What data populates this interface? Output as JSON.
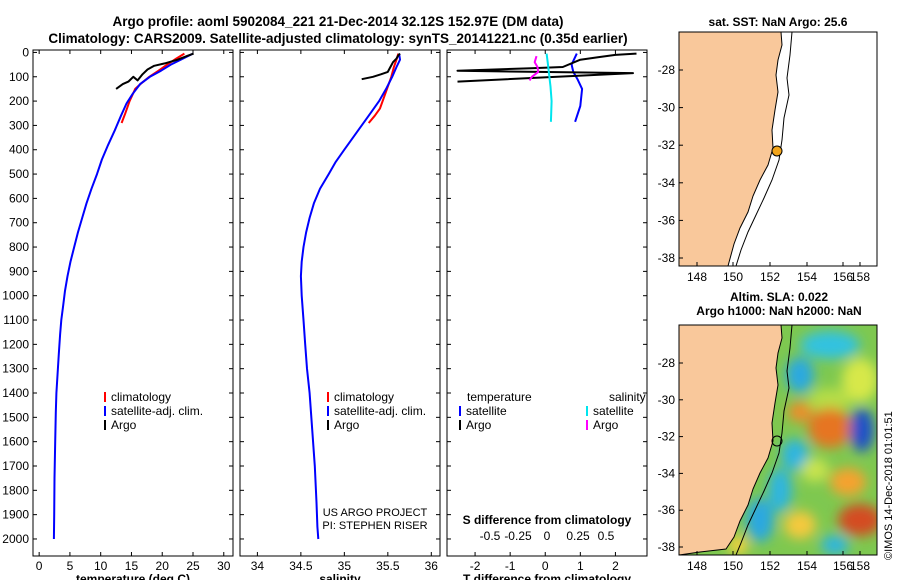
{
  "title": {
    "line1": "Argo profile: aoml 5902084_221 21-Dec-2014 32.12S 152.97E (DM data)",
    "line2": "Climatology: CARS2009. Satellite-adjusted climatology: synTS_20141221.nc (0.35d earlier)"
  },
  "credits": {
    "line1": "US ARGO PROJECT",
    "line2": "PI: STEPHEN RISER"
  },
  "watermark": "©IMOS 14-Dec-2018 01:01:51",
  "sst_map": {
    "title": "sat. SST: NaN Argo: 25.6"
  },
  "sla_map": {
    "title1": "Altim. SLA: 0.022",
    "title2": "Argo h1000: NaN h2000: NaN"
  },
  "map_axes": {
    "x_ticks": [
      "148",
      "150",
      "152",
      "154",
      "156",
      "158"
    ],
    "y_ticks": [
      "-28",
      "-30",
      "-32",
      "-34",
      "-36",
      "-38"
    ]
  },
  "colors": {
    "climatology": "#ff0000",
    "satellite": "#0000ff",
    "argo": "#000000",
    "sal_satellite": "#00e5ee",
    "sal_argo": "#ff00ff",
    "land": "#f9c89b"
  },
  "chart_data": [
    {
      "type": "line",
      "name": "temperature",
      "xlabel": "temperature (deg C)",
      "ylabel": "",
      "xlim": [
        -1,
        31.5
      ],
      "ylim": [
        2070,
        -10
      ],
      "x_ticks": [
        0,
        5,
        10,
        15,
        20,
        25,
        30
      ],
      "y_ticks": [
        0,
        100,
        200,
        300,
        400,
        500,
        600,
        700,
        800,
        900,
        1000,
        1100,
        1200,
        1300,
        1400,
        1500,
        1600,
        1700,
        1800,
        1900,
        2000
      ],
      "legend": {
        "labels": [
          "climatology",
          "satellite-adj. clim.",
          "Argo"
        ]
      },
      "series": [
        {
          "name": "climatology",
          "color": "#ff0000",
          "x": [
            23.6,
            22.3,
            20.8,
            19.4,
            17.9,
            16.7,
            15.6,
            14.7,
            14.0,
            13.4
          ],
          "y": [
            5,
            25,
            50,
            75,
            100,
            125,
            150,
            200,
            250,
            290
          ]
        },
        {
          "name": "satellite-adj. clim.",
          "color": "#0000ff",
          "x": [
            25.0,
            23.0,
            21.4,
            19.8,
            18.0,
            16.4,
            15.2,
            14.2,
            13.3,
            12.3,
            11.2,
            10.2,
            9.4,
            8.5,
            7.7,
            7.0,
            6.3,
            5.7,
            5.1,
            4.6,
            4.2,
            3.9,
            3.6,
            3.4,
            3.2,
            3.0,
            2.8,
            2.7,
            2.6,
            2.5,
            2.45,
            2.4
          ],
          "y": [
            5,
            30,
            50,
            75,
            100,
            130,
            170,
            210,
            260,
            320,
            380,
            440,
            500,
            560,
            620,
            680,
            740,
            800,
            860,
            920,
            980,
            1040,
            1100,
            1160,
            1240,
            1320,
            1400,
            1480,
            1600,
            1750,
            1900,
            2000
          ]
        },
        {
          "name": "Argo",
          "color": "#000000",
          "x": [
            12.5,
            13.6,
            14.5,
            15.3,
            16.0,
            16.8,
            17.6,
            18.7,
            20.4,
            22.5,
            24.0,
            25.1
          ],
          "y": [
            150,
            130,
            120,
            100,
            115,
            90,
            70,
            55,
            45,
            30,
            15,
            5
          ]
        }
      ]
    },
    {
      "type": "line",
      "name": "salinity",
      "xlabel": "salinity",
      "xlim": [
        33.8,
        36.1
      ],
      "ylim": [
        2070,
        -10
      ],
      "x_ticks": [
        34,
        34.5,
        35,
        35.5,
        36
      ],
      "legend": {
        "labels": [
          "climatology",
          "satellite-adj. clim.",
          "Argo"
        ]
      },
      "series": [
        {
          "name": "climatology",
          "color": "#ff0000",
          "x": [
            35.62,
            35.6,
            35.57,
            35.54,
            35.49,
            35.45,
            35.41,
            35.35,
            35.28
          ],
          "y": [
            5,
            30,
            60,
            100,
            150,
            190,
            230,
            260,
            290
          ]
        },
        {
          "name": "satellite-adj. clim.",
          "color": "#0000ff",
          "x": [
            35.63,
            35.64,
            35.6,
            35.55,
            35.48,
            35.4,
            35.3,
            35.2,
            35.1,
            35.0,
            34.9,
            34.82,
            34.72,
            34.65,
            34.6,
            34.56,
            34.53,
            34.51,
            34.5,
            34.51,
            34.53,
            34.55,
            34.57,
            34.6,
            34.63,
            34.66,
            34.68,
            34.69,
            34.7
          ],
          "y": [
            5,
            30,
            60,
            100,
            150,
            200,
            250,
            300,
            350,
            400,
            450,
            500,
            560,
            620,
            680,
            740,
            800,
            860,
            920,
            1000,
            1100,
            1200,
            1300,
            1400,
            1550,
            1700,
            1850,
            1950,
            2000
          ]
        },
        {
          "name": "Argo",
          "color": "#000000",
          "x": [
            35.2,
            35.33,
            35.42,
            35.5,
            35.53,
            35.56,
            35.6,
            35.62,
            35.64
          ],
          "y": [
            110,
            100,
            90,
            80,
            60,
            40,
            25,
            12,
            5
          ]
        }
      ]
    },
    {
      "type": "line",
      "name": "differences",
      "xlabel": "T difference from climatology",
      "xlabel2": "S difference from climatology",
      "xlim": [
        -2.8,
        2.9
      ],
      "ylim": [
        2070,
        -10
      ],
      "x_ticks": [
        -2,
        -1,
        0,
        1,
        2
      ],
      "s_ticks": [
        "-0.5",
        "-0.25",
        "0",
        "0.25",
        "0.5"
      ],
      "legend": {
        "temp_title": "temperature",
        "sal_title": "salinity",
        "labels": [
          "satellite",
          "Argo"
        ]
      },
      "series": [
        {
          "name": "T satellite",
          "color": "#0000ff",
          "x": [
            0.9,
            0.75,
            0.8,
            0.92,
            1.05,
            1.0,
            0.85
          ],
          "y": [
            5,
            50,
            80,
            110,
            150,
            220,
            285
          ]
        },
        {
          "name": "T Argo",
          "color": "#000000",
          "x": [
            2.6,
            2.0,
            1.5,
            1.0,
            0.5,
            -0.4,
            -2.5,
            -0.2,
            2.5,
            -1.1,
            -2.5
          ],
          "y": [
            5,
            10,
            20,
            30,
            60,
            65,
            75,
            80,
            85,
            110,
            120
          ]
        },
        {
          "name": "S satellite",
          "color": "#00e5ee",
          "x": [
            0.04,
            0.07,
            0.1,
            0.15,
            0.18,
            0.17,
            0.16
          ],
          "y": [
            5,
            40,
            80,
            140,
            200,
            250,
            285
          ]
        },
        {
          "name": "S Argo",
          "color": "#ff00ff",
          "x": [
            -0.25,
            -0.3,
            -0.22,
            -0.2,
            -0.38,
            -0.45
          ],
          "y": [
            15,
            40,
            60,
            80,
            100,
            115
          ]
        }
      ]
    }
  ]
}
